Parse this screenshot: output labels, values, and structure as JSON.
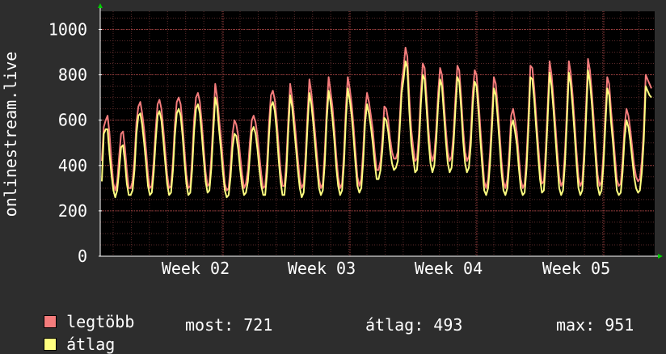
{
  "chart_data": {
    "type": "line",
    "ylabel": "onlinestream.live",
    "ylim": [
      0,
      1080
    ],
    "yticks": [
      0,
      200,
      400,
      600,
      800,
      1000
    ],
    "xticks": [
      "Week 02",
      "Week 03",
      "Week 04",
      "Week 05"
    ],
    "grid": true,
    "colors": {
      "background": "#2d2d2d",
      "plot": "#000000",
      "grid": "#5a2a2a",
      "axis": "#ffffff",
      "arrow": "#00cc00"
    },
    "series": [
      {
        "name": "legtöbb",
        "color": "#f47c7c",
        "values": [
          420,
          570,
          600,
          620,
          540,
          420,
          320,
          290,
          330,
          440,
          540,
          550,
          480,
          380,
          300,
          300,
          330,
          430,
          590,
          660,
          680,
          630,
          560,
          470,
          360,
          300,
          310,
          420,
          560,
          670,
          690,
          650,
          560,
          460,
          360,
          300,
          310,
          420,
          580,
          680,
          700,
          670,
          580,
          470,
          360,
          300,
          310,
          430,
          600,
          700,
          720,
          680,
          590,
          480,
          370,
          310,
          320,
          440,
          600,
          760,
          700,
          610,
          520,
          420,
          320,
          290,
          300,
          400,
          540,
          600,
          580,
          530,
          440,
          360,
          300,
          320,
          380,
          500,
          600,
          620,
          590,
          530,
          440,
          360,
          300,
          310,
          420,
          590,
          710,
          730,
          690,
          600,
          490,
          380,
          310,
          310,
          420,
          600,
          760,
          700,
          620,
          530,
          430,
          340,
          300,
          320,
          440,
          620,
          780,
          720,
          640,
          540,
          440,
          340,
          300,
          320,
          460,
          650,
          790,
          730,
          660,
          560,
          440,
          350,
          300,
          320,
          460,
          660,
          790,
          740,
          670,
          570,
          460,
          350,
          310,
          340,
          470,
          640,
          720,
          680,
          620,
          560,
          460,
          380,
          380,
          420,
          520,
          660,
          650,
          600,
          520,
          460,
          430,
          430,
          460,
          600,
          760,
          830,
          920,
          880,
          700,
          560,
          480,
          420,
          430,
          540,
          720,
          850,
          830,
          700,
          560,
          460,
          420,
          450,
          560,
          720,
          830,
          800,
          680,
          560,
          460,
          420,
          440,
          540,
          700,
          840,
          820,
          700,
          560,
          460,
          420,
          440,
          540,
          720,
          820,
          800,
          690,
          560,
          440,
          330,
          300,
          340,
          460,
          620,
          790,
          760,
          660,
          540,
          420,
          330,
          300,
          340,
          460,
          620,
          650,
          600,
          540,
          440,
          340,
          300,
          320,
          440,
          620,
          840,
          830,
          740,
          620,
          500,
          390,
          320,
          330,
          470,
          660,
          860,
          800,
          700,
          580,
          460,
          350,
          310,
          330,
          460,
          650,
          860,
          810,
          710,
          590,
          460,
          350,
          310,
          330,
          470,
          670,
          870,
          820,
          720,
          600,
          480,
          360,
          310,
          330,
          450,
          620,
          790,
          760,
          640,
          550,
          440,
          340,
          310,
          320,
          420,
          570,
          650,
          620,
          560,
          480,
          400,
          350,
          330,
          340,
          420,
          560,
          800,
          780,
          760,
          740
        ]
      },
      {
        "name": "átlag",
        "color": "#ffff80",
        "values": [
          330,
          540,
          560,
          560,
          450,
          360,
          290,
          260,
          290,
          380,
          480,
          490,
          420,
          320,
          270,
          270,
          290,
          380,
          540,
          620,
          630,
          580,
          500,
          410,
          310,
          270,
          280,
          370,
          510,
          620,
          640,
          600,
          510,
          410,
          320,
          270,
          280,
          380,
          530,
          630,
          650,
          620,
          530,
          420,
          320,
          270,
          280,
          380,
          550,
          650,
          670,
          630,
          540,
          430,
          330,
          280,
          290,
          390,
          550,
          700,
          660,
          560,
          470,
          370,
          290,
          260,
          270,
          350,
          480,
          540,
          530,
          470,
          380,
          310,
          270,
          280,
          330,
          440,
          550,
          570,
          540,
          470,
          380,
          310,
          270,
          270,
          370,
          540,
          660,
          680,
          640,
          550,
          430,
          330,
          270,
          270,
          370,
          550,
          710,
          660,
          570,
          480,
          380,
          300,
          260,
          280,
          390,
          570,
          720,
          670,
          590,
          490,
          390,
          300,
          270,
          290,
          410,
          600,
          730,
          680,
          610,
          510,
          390,
          310,
          270,
          290,
          410,
          610,
          740,
          690,
          620,
          520,
          410,
          310,
          280,
          300,
          420,
          590,
          670,
          630,
          570,
          500,
          410,
          340,
          340,
          380,
          470,
          610,
          600,
          550,
          470,
          410,
          380,
          390,
          420,
          560,
          720,
          780,
          860,
          830,
          640,
          500,
          430,
          370,
          380,
          490,
          670,
          800,
          780,
          650,
          510,
          410,
          370,
          400,
          510,
          670,
          780,
          750,
          630,
          510,
          410,
          370,
          390,
          490,
          650,
          790,
          770,
          650,
          510,
          410,
          370,
          390,
          490,
          670,
          770,
          750,
          640,
          510,
          390,
          290,
          270,
          300,
          410,
          570,
          740,
          710,
          610,
          490,
          370,
          290,
          270,
          300,
          410,
          570,
          600,
          550,
          490,
          390,
          300,
          270,
          280,
          390,
          570,
          790,
          780,
          690,
          570,
          450,
          340,
          280,
          290,
          420,
          610,
          810,
          750,
          650,
          530,
          410,
          300,
          270,
          290,
          410,
          600,
          810,
          760,
          660,
          540,
          410,
          300,
          270,
          290,
          420,
          620,
          820,
          770,
          670,
          550,
          430,
          310,
          270,
          290,
          400,
          570,
          740,
          710,
          590,
          500,
          390,
          290,
          270,
          280,
          370,
          520,
          600,
          570,
          510,
          430,
          350,
          300,
          280,
          290,
          370,
          510,
          750,
          730,
          710,
          700
        ]
      }
    ]
  },
  "legend": {
    "items": [
      {
        "label": "legtöbb",
        "color": "#f47c7c"
      },
      {
        "label": "átlag",
        "color": "#ffff80"
      }
    ],
    "stats": {
      "most": "most: 721",
      "atlag": "átlag: 493",
      "max": "max: 951"
    }
  }
}
